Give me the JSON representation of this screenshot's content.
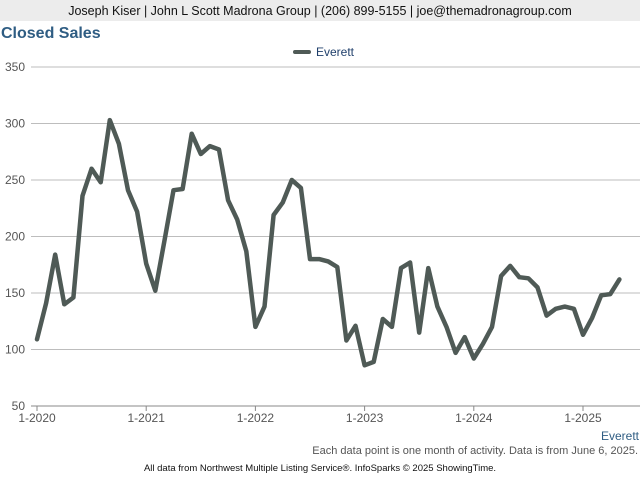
{
  "header": {
    "contact": "Joseph Kiser | John L Scott Madrona Group | (206) 899-5155 | joe@themadronagroup.com"
  },
  "footer": {
    "note": "Each data point is one month of activity. Data is from June 6, 2025.",
    "source": "All data from Northwest Multiple Listing Service®. InfoSparks © 2025 ShowingTime."
  },
  "chart_data": {
    "type": "line",
    "title": "Closed Sales",
    "xlabel": "",
    "ylabel": "",
    "series_caption": "Everett",
    "ylim": [
      50,
      350
    ],
    "yticks": [
      50,
      100,
      150,
      200,
      250,
      300,
      350
    ],
    "xticks": [
      {
        "label": "1-2020",
        "index": 0
      },
      {
        "label": "1-2021",
        "index": 12
      },
      {
        "label": "1-2022",
        "index": 24
      },
      {
        "label": "1-2023",
        "index": 36
      },
      {
        "label": "1-2024",
        "index": 48
      },
      {
        "label": "1-2025",
        "index": 60
      }
    ],
    "x": [
      "2020-01",
      "2020-02",
      "2020-03",
      "2020-04",
      "2020-05",
      "2020-06",
      "2020-07",
      "2020-08",
      "2020-09",
      "2020-10",
      "2020-11",
      "2020-12",
      "2021-01",
      "2021-02",
      "2021-03",
      "2021-04",
      "2021-05",
      "2021-06",
      "2021-07",
      "2021-08",
      "2021-09",
      "2021-10",
      "2021-11",
      "2021-12",
      "2022-01",
      "2022-02",
      "2022-03",
      "2022-04",
      "2022-05",
      "2022-06",
      "2022-07",
      "2022-08",
      "2022-09",
      "2022-10",
      "2022-11",
      "2022-12",
      "2023-01",
      "2023-02",
      "2023-03",
      "2023-04",
      "2023-05",
      "2023-06",
      "2023-07",
      "2023-08",
      "2023-09",
      "2023-10",
      "2023-11",
      "2023-12",
      "2024-01",
      "2024-02",
      "2024-03",
      "2024-04",
      "2024-05",
      "2024-06",
      "2024-07",
      "2024-08",
      "2024-09",
      "2024-10",
      "2024-11",
      "2024-12",
      "2025-01",
      "2025-02",
      "2025-03",
      "2025-04",
      "2025-05"
    ],
    "grid": true,
    "legend": "top-center",
    "series": [
      {
        "name": "Everett",
        "color": "#4f5a56",
        "values": [
          109,
          141,
          184,
          140,
          146,
          236,
          260,
          248,
          303,
          282,
          241,
          222,
          176,
          152,
          196,
          241,
          242,
          291,
          273,
          280,
          277,
          232,
          215,
          187,
          120,
          138,
          219,
          230,
          250,
          243,
          180,
          180,
          178,
          173,
          108,
          121,
          86,
          89,
          127,
          120,
          172,
          177,
          115,
          172,
          138,
          120,
          97,
          111,
          92,
          105,
          120,
          165,
          174,
          164,
          163,
          155,
          130,
          136,
          138,
          136,
          113,
          128,
          148,
          149,
          162
        ]
      }
    ]
  }
}
